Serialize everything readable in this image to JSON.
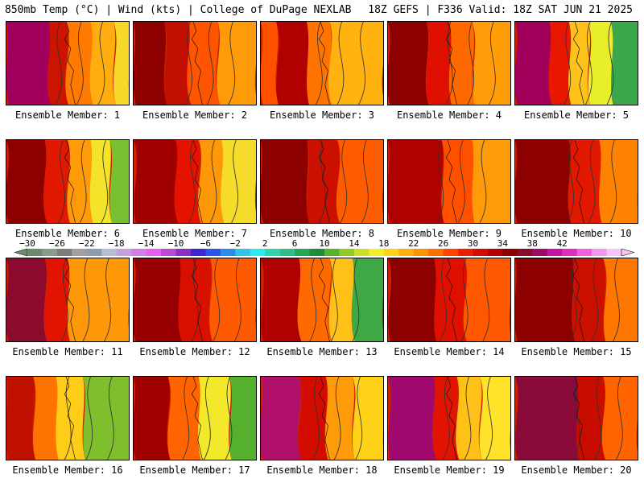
{
  "header": {
    "left": "850mb Temp (°C) | Wind (kts) | College of DuPage NEXLAB",
    "right": "18Z GEFS | F336 Valid: 18Z SAT JUN 21 2025"
  },
  "legend": {
    "ticks": [
      "−30",
      "−26",
      "−22",
      "−18",
      "−14",
      "−10",
      "−6",
      "−2",
      "2",
      "6",
      "10",
      "14",
      "18",
      "22",
      "26",
      "30",
      "34",
      "38",
      "42"
    ],
    "colors": [
      "#6e8a6e",
      "#8c9a8c",
      "#7d7d7d",
      "#a0a0a0",
      "#8e9bb3",
      "#b4bfd6",
      "#c89ee0",
      "#d37de8",
      "#e65ef0",
      "#b94ad6",
      "#8a2fc4",
      "#3c28d2",
      "#2a55e6",
      "#2b8de8",
      "#33c3e8",
      "#2ee8ef",
      "#2ed4b0",
      "#2ebf88",
      "#25a85a",
      "#1f8f35",
      "#55b52a",
      "#8fcc2a",
      "#c8e02a",
      "#f3f02a",
      "#ffd21a",
      "#ffb00f",
      "#ff9308",
      "#ff6f00",
      "#ff4400",
      "#f01c00",
      "#d40b00",
      "#b00000",
      "#8c0000",
      "#8a0a2e",
      "#9e0a6a",
      "#c414a0",
      "#e02cc4",
      "#f060e0",
      "#f596ee",
      "#f8c6f4"
    ]
  },
  "panels": [
    {
      "label": "Ensemble Member: 1",
      "bands": [
        {
          "y0": 0,
          "x0": 0,
          "x1": 55,
          "c": "#a1005e"
        },
        {
          "y0": 0,
          "x0": 55,
          "x1": 78,
          "c": "#cc1400"
        },
        {
          "y0": 0,
          "x0": 78,
          "x1": 110,
          "c": "#ff7a00"
        },
        {
          "y0": 0,
          "x0": 110,
          "x1": 140,
          "c": "#ffad10"
        },
        {
          "y0": 0,
          "x0": 140,
          "x1": 160,
          "c": "#f5d82a"
        }
      ]
    },
    {
      "label": "Ensemble Member: 2",
      "bands": [
        {
          "y0": 0,
          "x0": 0,
          "x1": 40,
          "c": "#8c0000"
        },
        {
          "y0": 0,
          "x0": 40,
          "x1": 72,
          "c": "#c20f00"
        },
        {
          "y0": 0,
          "x0": 72,
          "x1": 110,
          "c": "#ff5400"
        },
        {
          "y0": 0,
          "x0": 110,
          "x1": 160,
          "c": "#ff9a08"
        }
      ]
    },
    {
      "label": "Ensemble Member: 3",
      "bands": [
        {
          "y0": 0,
          "x0": 0,
          "x1": 20,
          "c": "#ff5000"
        },
        {
          "y0": 0,
          "x0": 20,
          "x1": 60,
          "c": "#b00000"
        },
        {
          "y0": 0,
          "x0": 60,
          "x1": 90,
          "c": "#ff7400"
        },
        {
          "y0": 0,
          "x0": 90,
          "x1": 160,
          "c": "#ffb210"
        }
      ]
    },
    {
      "label": "Ensemble Member: 4",
      "bands": [
        {
          "y0": 0,
          "x0": 0,
          "x1": 50,
          "c": "#8c0000"
        },
        {
          "y0": 0,
          "x0": 50,
          "x1": 80,
          "c": "#e01000"
        },
        {
          "y0": 0,
          "x0": 80,
          "x1": 110,
          "c": "#ff6a00"
        },
        {
          "y0": 0,
          "x0": 110,
          "x1": 160,
          "c": "#ff9c08"
        }
      ]
    },
    {
      "label": "Ensemble Member: 5",
      "bands": [
        {
          "y0": 0,
          "x0": 0,
          "x1": 45,
          "c": "#a0005a"
        },
        {
          "y0": 0,
          "x0": 45,
          "x1": 70,
          "c": "#e81800"
        },
        {
          "y0": 0,
          "x0": 70,
          "x1": 95,
          "c": "#ffc21a"
        },
        {
          "y0": 0,
          "x0": 95,
          "x1": 125,
          "c": "#e8ee2a"
        },
        {
          "y0": 0,
          "x0": 125,
          "x1": 160,
          "c": "#3aa84a"
        }
      ]
    },
    {
      "label": "Ensemble Member: 6",
      "bands": [
        {
          "y0": 0,
          "x0": 0,
          "x1": 50,
          "c": "#8c0000"
        },
        {
          "y0": 0,
          "x0": 50,
          "x1": 80,
          "c": "#e01800"
        },
        {
          "y0": 0,
          "x0": 80,
          "x1": 110,
          "c": "#ff9a08"
        },
        {
          "y0": 0,
          "x0": 110,
          "x1": 135,
          "c": "#f3e42a"
        },
        {
          "y0": 0,
          "x0": 135,
          "x1": 160,
          "c": "#78c030"
        }
      ]
    },
    {
      "label": "Ensemble Member: 7",
      "bands": [
        {
          "y0": 0,
          "x0": 0,
          "x1": 55,
          "c": "#a00000"
        },
        {
          "y0": 0,
          "x0": 55,
          "x1": 85,
          "c": "#e61200"
        },
        {
          "y0": 0,
          "x0": 85,
          "x1": 115,
          "c": "#ff9808"
        },
        {
          "y0": 0,
          "x0": 115,
          "x1": 160,
          "c": "#f5dc2a"
        }
      ]
    },
    {
      "label": "Ensemble Member: 8",
      "bands": [
        {
          "y0": 0,
          "x0": 0,
          "x1": 60,
          "c": "#8c0000"
        },
        {
          "y0": 0,
          "x0": 60,
          "x1": 100,
          "c": "#cc1000"
        },
        {
          "y0": 0,
          "x0": 100,
          "x1": 160,
          "c": "#ff5c00"
        }
      ]
    },
    {
      "label": "Ensemble Member: 9",
      "bands": [
        {
          "y0": 0,
          "x0": 0,
          "x1": 70,
          "c": "#b00000"
        },
        {
          "y0": 0,
          "x0": 70,
          "x1": 110,
          "c": "#ff5000"
        },
        {
          "y0": 0,
          "x0": 110,
          "x1": 160,
          "c": "#ff9a08"
        }
      ]
    },
    {
      "label": "Ensemble Member: 10",
      "bands": [
        {
          "y0": 0,
          "x0": 0,
          "x1": 70,
          "c": "#8c0000"
        },
        {
          "y0": 0,
          "x0": 70,
          "x1": 110,
          "c": "#e01800"
        },
        {
          "y0": 0,
          "x0": 110,
          "x1": 160,
          "c": "#ff8200"
        }
      ]
    },
    {
      "label": "Ensemble Member: 11",
      "bands": [
        {
          "y0": 0,
          "x0": 0,
          "x1": 50,
          "c": "#8c0a2e"
        },
        {
          "y0": 0,
          "x0": 50,
          "x1": 80,
          "c": "#e01400"
        },
        {
          "y0": 0,
          "x0": 80,
          "x1": 160,
          "c": "#ff9808"
        }
      ]
    },
    {
      "label": "Ensemble Member: 12",
      "bands": [
        {
          "y0": 0,
          "x0": 0,
          "x1": 60,
          "c": "#960000"
        },
        {
          "y0": 0,
          "x0": 60,
          "x1": 100,
          "c": "#d81000"
        },
        {
          "y0": 0,
          "x0": 100,
          "x1": 160,
          "c": "#ff5a00"
        }
      ]
    },
    {
      "label": "Ensemble Member: 13",
      "bands": [
        {
          "y0": 0,
          "x0": 0,
          "x1": 50,
          "c": "#b00000"
        },
        {
          "y0": 0,
          "x0": 50,
          "x1": 90,
          "c": "#ff6a00"
        },
        {
          "y0": 0,
          "x0": 90,
          "x1": 120,
          "c": "#ffc018"
        },
        {
          "y0": 0,
          "x0": 120,
          "x1": 160,
          "c": "#3fa846"
        }
      ]
    },
    {
      "label": "Ensemble Member: 14",
      "bands": [
        {
          "y0": 0,
          "x0": 0,
          "x1": 60,
          "c": "#8c0000"
        },
        {
          "y0": 0,
          "x0": 60,
          "x1": 100,
          "c": "#e01000"
        },
        {
          "y0": 0,
          "x0": 100,
          "x1": 160,
          "c": "#ff5800"
        }
      ]
    },
    {
      "label": "Ensemble Member: 15",
      "bands": [
        {
          "y0": 0,
          "x0": 0,
          "x1": 75,
          "c": "#8c0000"
        },
        {
          "y0": 0,
          "x0": 75,
          "x1": 115,
          "c": "#cc1000"
        },
        {
          "y0": 0,
          "x0": 115,
          "x1": 160,
          "c": "#ff7600"
        }
      ]
    },
    {
      "label": "Ensemble Member: 16",
      "bands": [
        {
          "y0": 0,
          "x0": 0,
          "x1": 35,
          "c": "#c01000"
        },
        {
          "y0": 0,
          "x0": 35,
          "x1": 65,
          "c": "#ff7400"
        },
        {
          "y0": 0,
          "x0": 65,
          "x1": 100,
          "c": "#ffcc18"
        },
        {
          "y0": 0,
          "x0": 100,
          "x1": 160,
          "c": "#7fbf2e"
        }
      ]
    },
    {
      "label": "Ensemble Member: 17",
      "bands": [
        {
          "y0": 0,
          "x0": 0,
          "x1": 45,
          "c": "#a00000"
        },
        {
          "y0": 0,
          "x0": 45,
          "x1": 85,
          "c": "#ff6400"
        },
        {
          "y0": 0,
          "x0": 85,
          "x1": 125,
          "c": "#f3e82a"
        },
        {
          "y0": 0,
          "x0": 125,
          "x1": 160,
          "c": "#55b02e"
        }
      ]
    },
    {
      "label": "Ensemble Member: 18",
      "bands": [
        {
          "y0": 0,
          "x0": 0,
          "x1": 50,
          "c": "#b0106a"
        },
        {
          "y0": 0,
          "x0": 50,
          "x1": 85,
          "c": "#d40b00"
        },
        {
          "y0": 0,
          "x0": 85,
          "x1": 120,
          "c": "#ff9a08"
        },
        {
          "y0": 0,
          "x0": 120,
          "x1": 160,
          "c": "#ffd21a"
        }
      ]
    },
    {
      "label": "Ensemble Member: 19",
      "bands": [
        {
          "y0": 0,
          "x0": 0,
          "x1": 60,
          "c": "#a00a6e"
        },
        {
          "y0": 0,
          "x0": 60,
          "x1": 90,
          "c": "#e01400"
        },
        {
          "y0": 0,
          "x0": 90,
          "x1": 120,
          "c": "#ffc018"
        },
        {
          "y0": 0,
          "x0": 120,
          "x1": 160,
          "c": "#ffe22a"
        }
      ]
    },
    {
      "label": "Ensemble Member: 20",
      "bands": [
        {
          "y0": 0,
          "x0": 0,
          "x1": 80,
          "c": "#8a0a3a"
        },
        {
          "y0": 0,
          "x0": 80,
          "x1": 115,
          "c": "#c80c00"
        },
        {
          "y0": 0,
          "x0": 115,
          "x1": 160,
          "c": "#ff6400"
        }
      ]
    }
  ]
}
